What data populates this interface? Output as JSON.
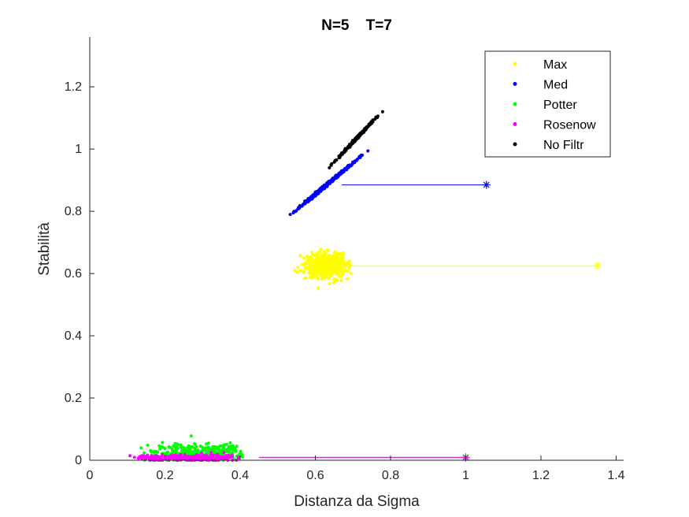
{
  "chart_data": {
    "type": "scatter",
    "title": "N=5    T=7",
    "xlabel": "Distanza da Sigma",
    "ylabel": "Stabilità",
    "xlim": [
      0,
      1.42
    ],
    "ylim": [
      0,
      1.36
    ],
    "xticks": [
      "0",
      "0.2",
      "0.4",
      "0.6",
      "0.8",
      "1",
      "1.2",
      "1.4"
    ],
    "yticks": [
      "0",
      "0.2",
      "0.4",
      "0.6",
      "0.8",
      "1",
      "1.2"
    ],
    "grid": false,
    "legend_position": "top-right",
    "series": [
      {
        "name": "Max",
        "color": "#ffff00",
        "cluster": {
          "x_center": 0.63,
          "x_spread": 0.06,
          "y_center": 0.625,
          "y_spread": 0.035,
          "count": 500
        },
        "marker": {
          "x": 1.35,
          "y": 0.625
        }
      },
      {
        "name": "Med",
        "color": "#0000ff",
        "cluster": {
          "x_center": 0.63,
          "x_spread": 0.05,
          "y_center": 0.885,
          "y_spread": 0.045,
          "count": 500
        },
        "marker": {
          "x": 1.055,
          "y": 0.885
        }
      },
      {
        "name": "Potter",
        "color": "#00ff00",
        "cluster": {
          "x_center": 0.28,
          "x_spread": 0.1,
          "y_center": 0.025,
          "y_spread": 0.02,
          "count": 300
        },
        "marker": {
          "x": 1.0,
          "y": 0.01
        }
      },
      {
        "name": "Rosenow",
        "color": "#ff00ff",
        "cluster": {
          "x_center": 0.25,
          "x_spread": 0.1,
          "y_center": 0.008,
          "y_spread": 0.008,
          "count": 250
        },
        "marker": {
          "x": 1.0,
          "y": 0.008
        }
      },
      {
        "name": "No Filtr",
        "color": "#000000",
        "cluster": {
          "x_center": 0.71,
          "x_spread": 0.035,
          "y_center": 1.035,
          "y_spread": 0.04,
          "count": 300
        },
        "marker": null
      }
    ]
  }
}
